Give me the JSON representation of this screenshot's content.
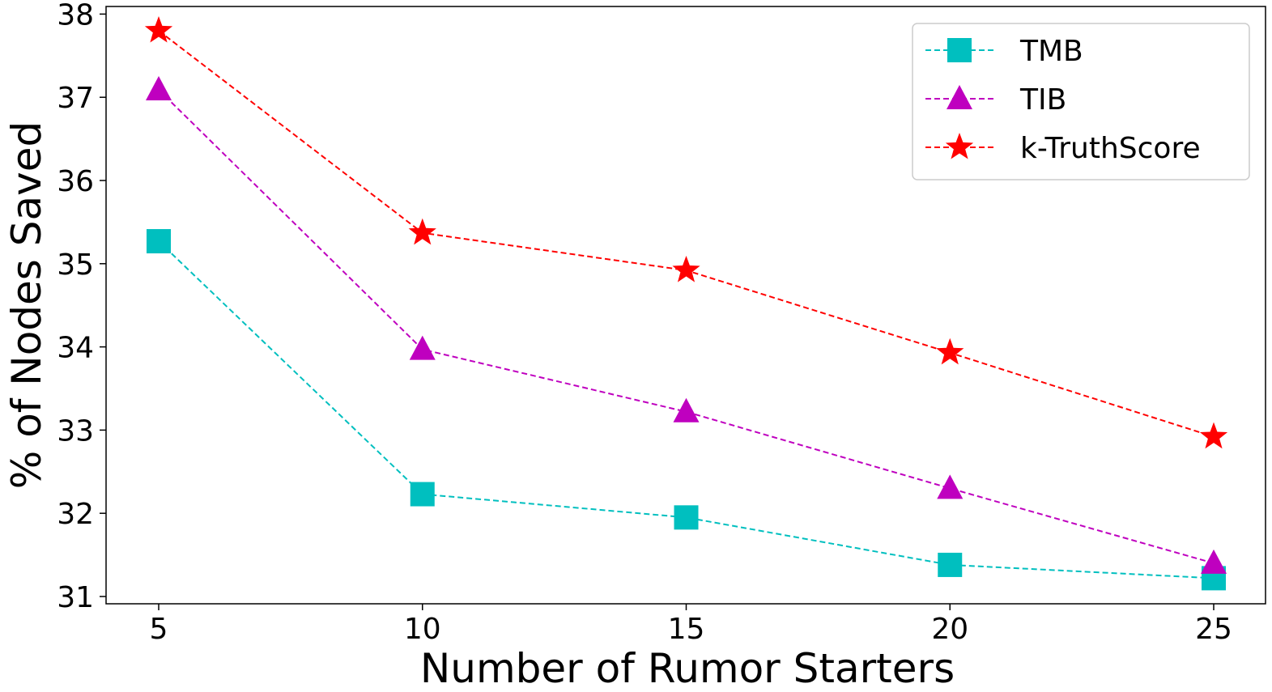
{
  "chart_data": {
    "type": "line",
    "title": "",
    "xlabel": "Number of Rumor Starters",
    "ylabel": "% of Nodes Saved",
    "x": [
      5,
      10,
      15,
      20,
      25
    ],
    "xticks": [
      "5",
      "10",
      "15",
      "20",
      "25"
    ],
    "yticks": [
      "31",
      "32",
      "33",
      "34",
      "35",
      "36",
      "37",
      "38"
    ],
    "xlim": [
      4.0,
      25.0
    ],
    "ylim": [
      30.9,
      38.1
    ],
    "grid": false,
    "legend_position": "top-right",
    "series": [
      {
        "name": "TMB",
        "marker": "square",
        "color": "#00BFBF",
        "linestyle": "dashed",
        "values": [
          35.27,
          32.23,
          31.95,
          31.38,
          31.22
        ]
      },
      {
        "name": "TIB",
        "marker": "triangle",
        "color": "#BF00BF",
        "linestyle": "dashed",
        "values": [
          37.09,
          33.97,
          33.22,
          32.3,
          31.4
        ]
      },
      {
        "name": "k-TruthScore",
        "marker": "star",
        "color": "#FF0000",
        "linestyle": "dashed",
        "values": [
          37.8,
          35.37,
          34.92,
          33.93,
          32.92
        ]
      }
    ]
  }
}
